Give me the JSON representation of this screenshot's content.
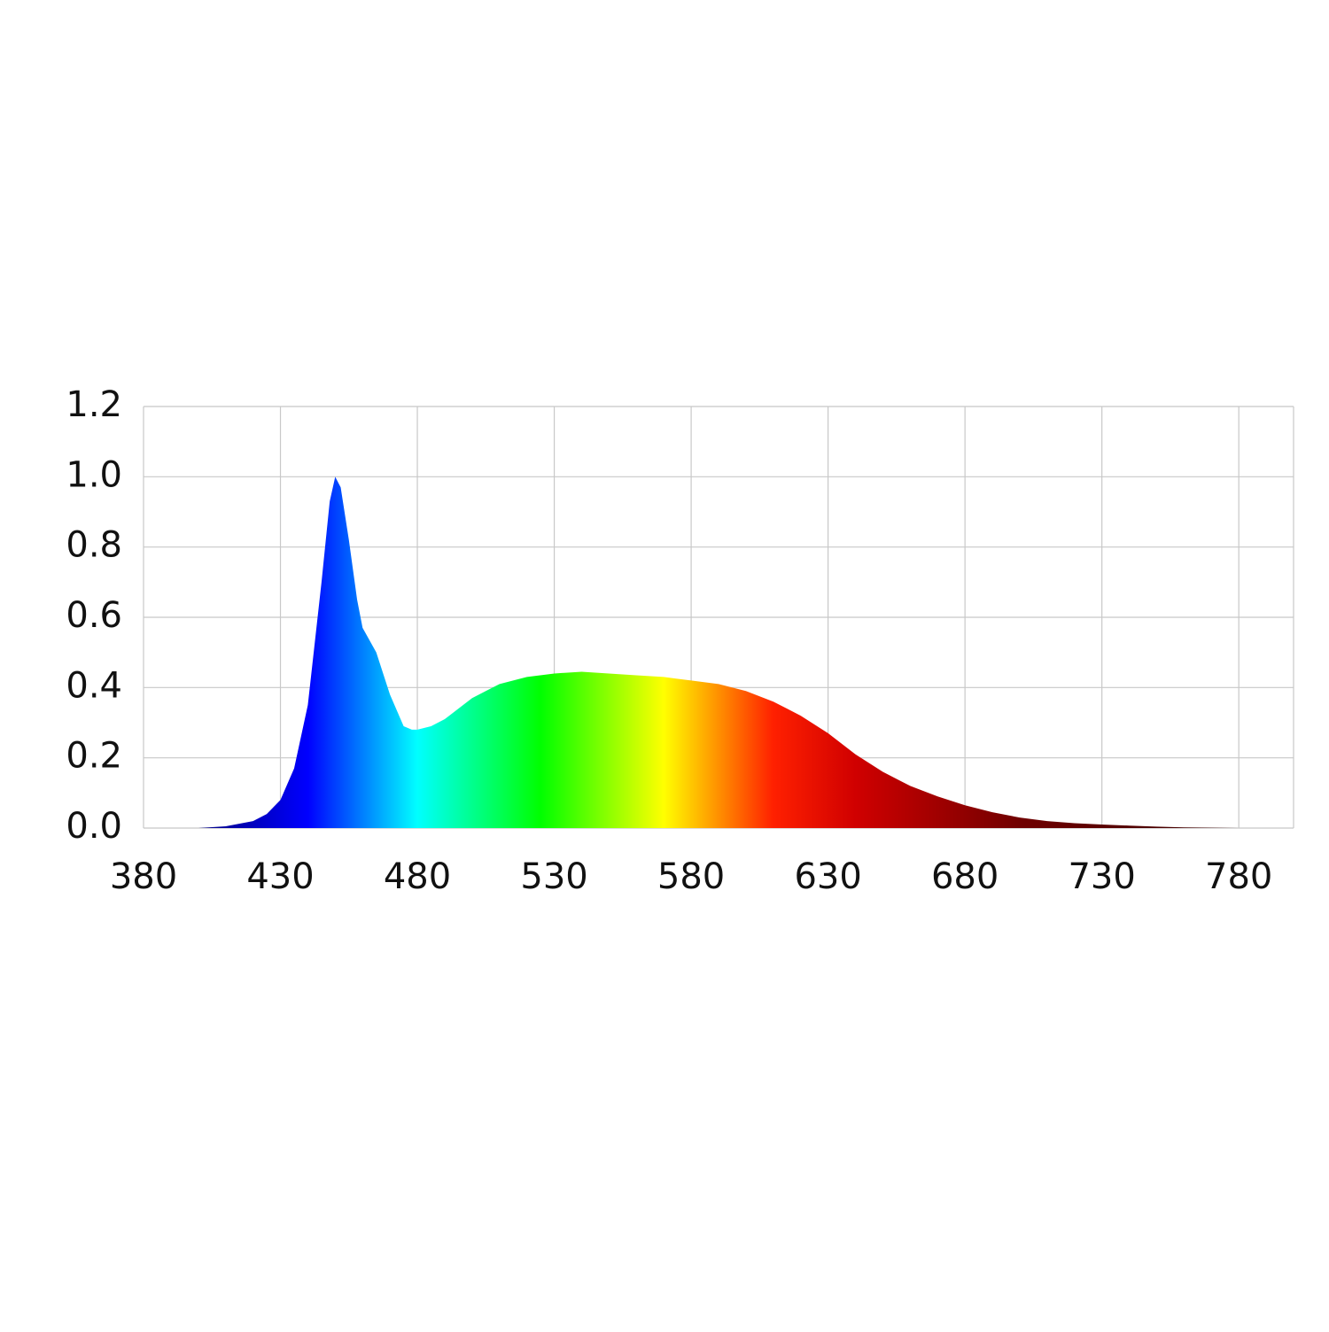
{
  "chart_data": {
    "type": "area",
    "x": [
      400,
      410,
      420,
      425,
      430,
      435,
      440,
      445,
      448,
      450,
      452,
      455,
      458,
      460,
      465,
      470,
      475,
      478,
      480,
      485,
      490,
      495,
      500,
      505,
      510,
      520,
      530,
      540,
      550,
      560,
      570,
      580,
      590,
      600,
      610,
      620,
      630,
      640,
      650,
      660,
      670,
      680,
      690,
      700,
      710,
      720,
      730,
      740,
      750,
      760,
      770,
      780,
      790
    ],
    "values": [
      0,
      0.005,
      0.02,
      0.04,
      0.08,
      0.17,
      0.35,
      0.7,
      0.93,
      1.0,
      0.97,
      0.82,
      0.65,
      0.57,
      0.5,
      0.38,
      0.29,
      0.28,
      0.28,
      0.29,
      0.31,
      0.34,
      0.37,
      0.39,
      0.41,
      0.43,
      0.44,
      0.445,
      0.44,
      0.435,
      0.43,
      0.42,
      0.41,
      0.39,
      0.36,
      0.32,
      0.27,
      0.21,
      0.16,
      0.12,
      0.09,
      0.065,
      0.045,
      0.03,
      0.02,
      0.014,
      0.01,
      0.007,
      0.004,
      0.002,
      0.001,
      0,
      0
    ],
    "xlim": [
      380,
      800
    ],
    "xticks": [
      380,
      430,
      480,
      530,
      580,
      630,
      680,
      730,
      780
    ],
    "ylim": [
      0,
      1.2
    ],
    "yticks": [
      {
        "value": 0,
        "label": "0.0"
      },
      0.2,
      0.4,
      0.6,
      0.8,
      {
        "value": 1,
        "label": "1.0"
      },
      1.2
    ],
    "grid": true,
    "color_stops": [
      [
        400,
        "#000080"
      ],
      [
        440,
        "#0000ff"
      ],
      [
        480,
        "#00ffff"
      ],
      [
        525,
        "#00ff00"
      ],
      [
        570,
        "#ffff00"
      ],
      [
        610,
        "#ff2000"
      ],
      [
        640,
        "#d00000"
      ],
      [
        700,
        "#700000"
      ],
      [
        790,
        "#300000"
      ]
    ]
  }
}
